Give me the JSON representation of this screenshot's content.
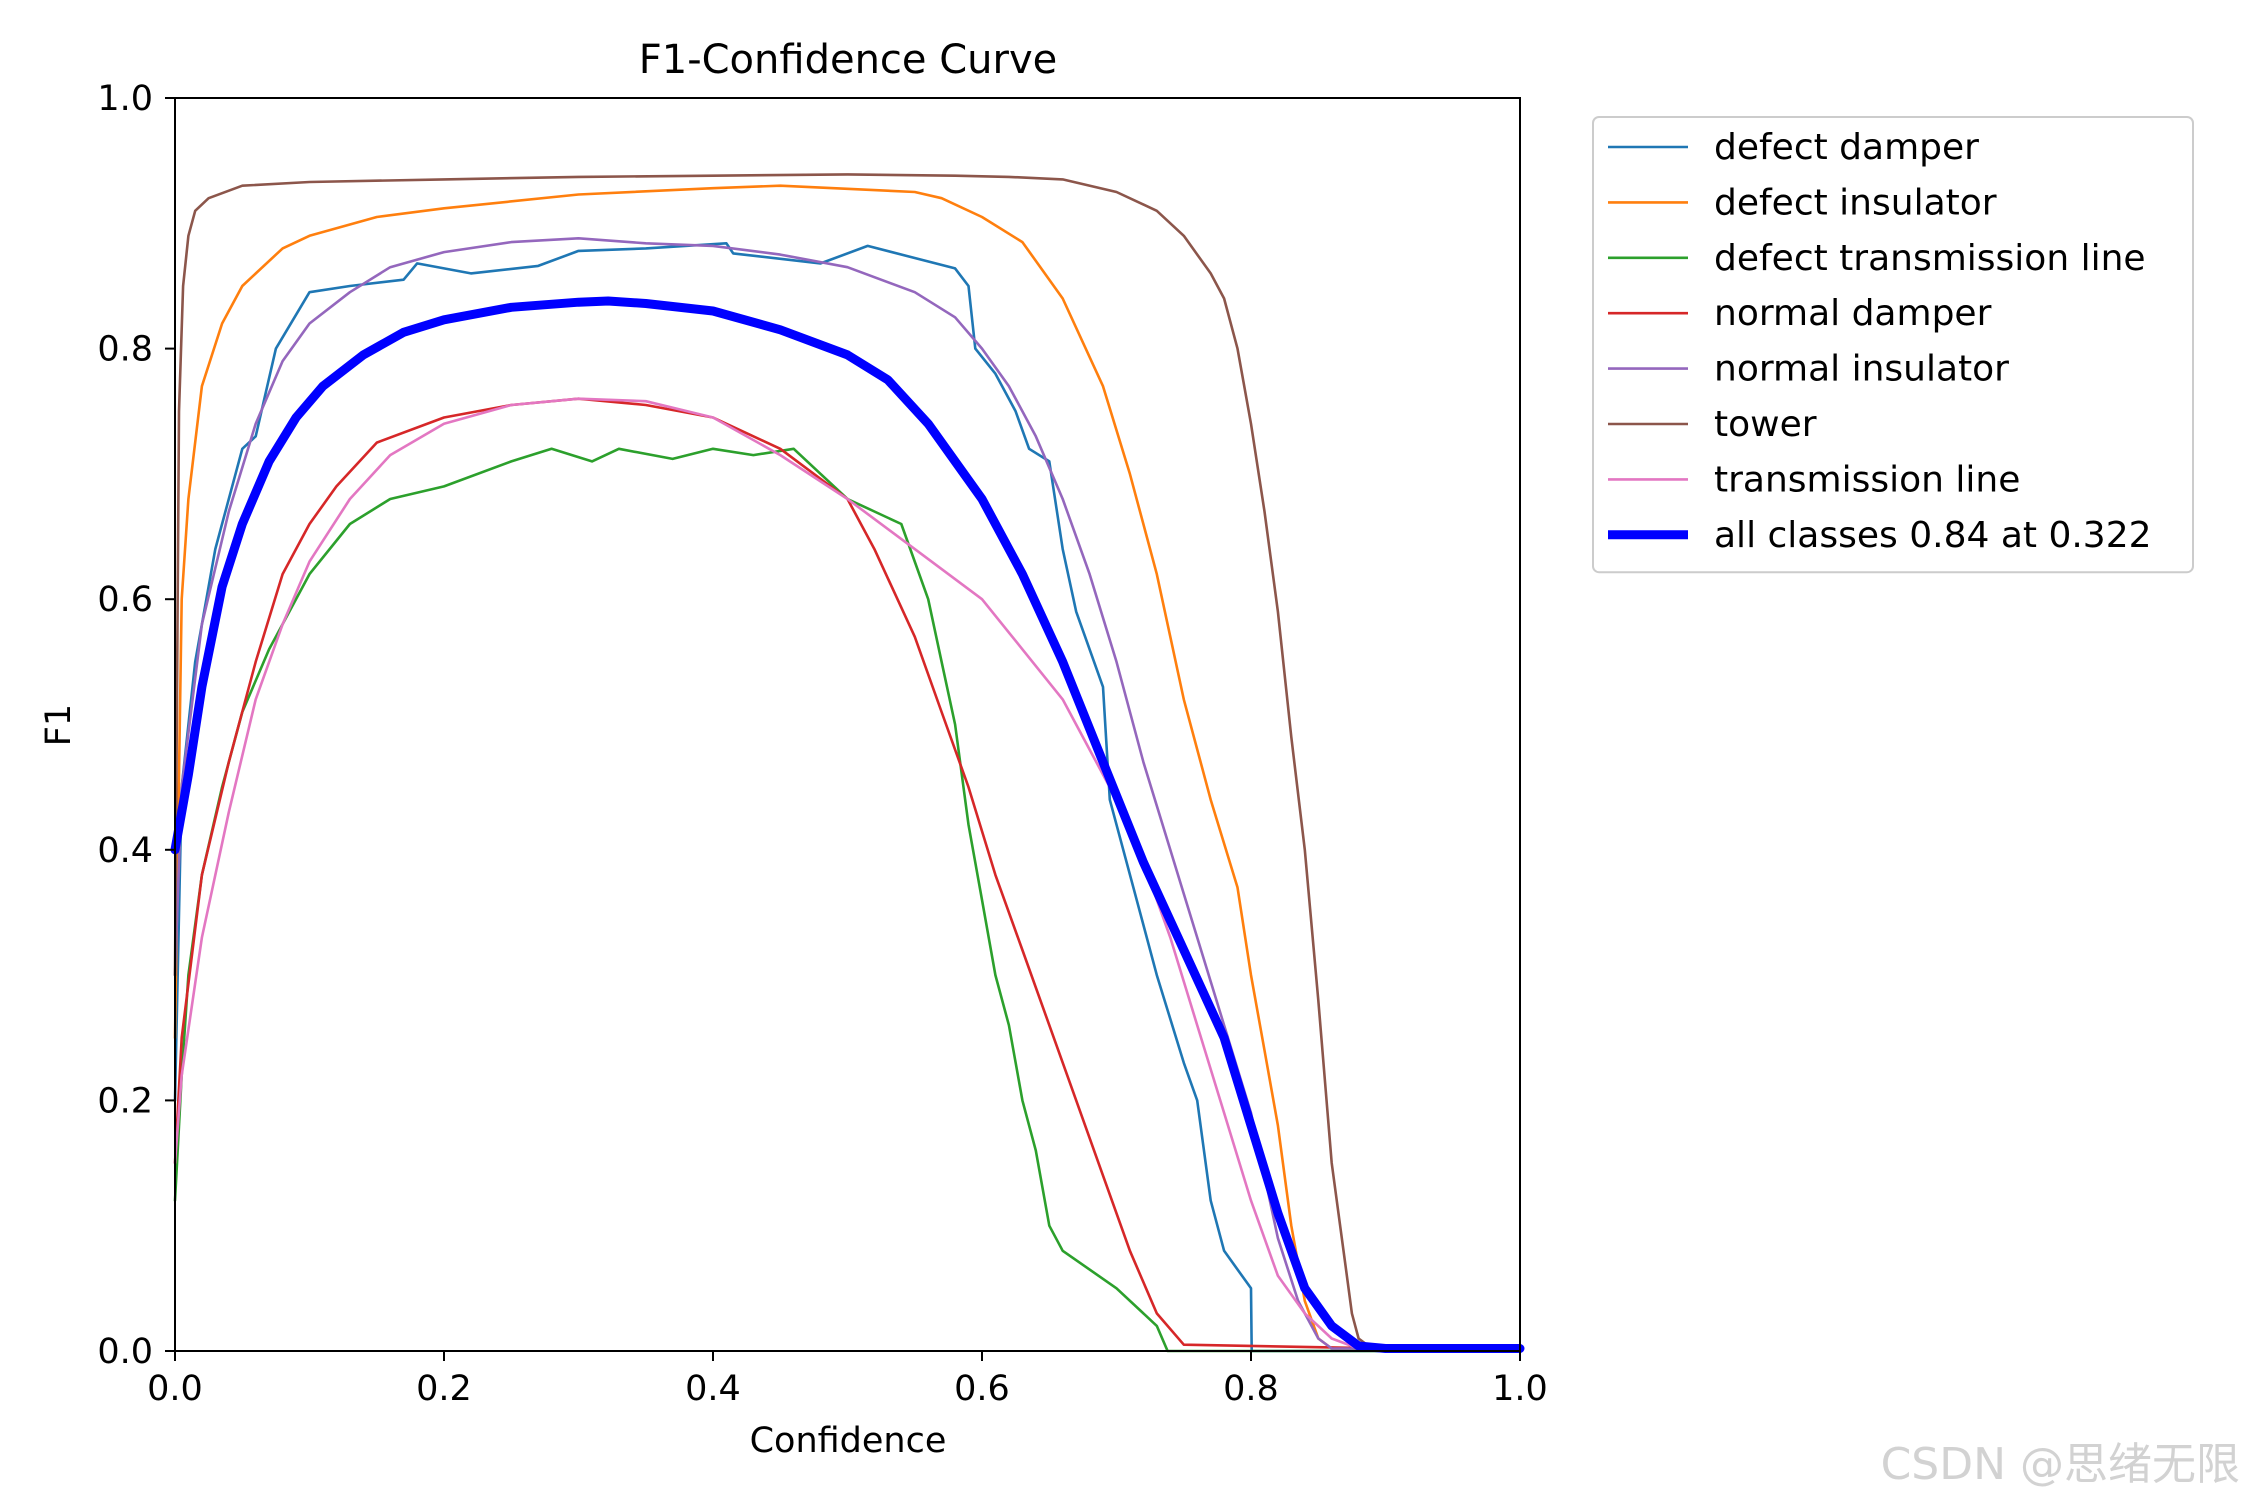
{
  "chart_data": {
    "type": "line",
    "title": "F1-Confidence Curve",
    "xlabel": "Confidence",
    "ylabel": "F1",
    "xlim": [
      0,
      1
    ],
    "ylim": [
      0,
      1
    ],
    "xticks": [
      "0.0",
      "0.2",
      "0.4",
      "0.6",
      "0.8",
      "1.0"
    ],
    "yticks": [
      "0.0",
      "0.2",
      "0.4",
      "0.6",
      "0.8",
      "1.0"
    ],
    "grid": false,
    "legend_position": "outside-top-right",
    "series": [
      {
        "name": "defect damper",
        "color": "#1f77b4",
        "points": [
          [
            0,
            0.2
          ],
          [
            0.005,
            0.45
          ],
          [
            0.015,
            0.55
          ],
          [
            0.03,
            0.64
          ],
          [
            0.05,
            0.72
          ],
          [
            0.06,
            0.73
          ],
          [
            0.075,
            0.8
          ],
          [
            0.1,
            0.845
          ],
          [
            0.13,
            0.85
          ],
          [
            0.17,
            0.855
          ],
          [
            0.18,
            0.868
          ],
          [
            0.22,
            0.86
          ],
          [
            0.27,
            0.866
          ],
          [
            0.3,
            0.878
          ],
          [
            0.35,
            0.88
          ],
          [
            0.41,
            0.884
          ],
          [
            0.415,
            0.876
          ],
          [
            0.48,
            0.868
          ],
          [
            0.515,
            0.882
          ],
          [
            0.58,
            0.864
          ],
          [
            0.59,
            0.85
          ],
          [
            0.595,
            0.8
          ],
          [
            0.61,
            0.78
          ],
          [
            0.625,
            0.75
          ],
          [
            0.635,
            0.72
          ],
          [
            0.65,
            0.71
          ],
          [
            0.66,
            0.64
          ],
          [
            0.67,
            0.59
          ],
          [
            0.69,
            0.53
          ],
          [
            0.695,
            0.44
          ],
          [
            0.715,
            0.36
          ],
          [
            0.73,
            0.3
          ],
          [
            0.75,
            0.23
          ],
          [
            0.76,
            0.2
          ],
          [
            0.77,
            0.12
          ],
          [
            0.78,
            0.08
          ],
          [
            0.8,
            0.05
          ],
          [
            0.8005,
            0.0
          ],
          [
            1.0,
            0.0
          ]
        ]
      },
      {
        "name": "defect insulator",
        "color": "#ff7f0e",
        "points": [
          [
            0,
            0.25
          ],
          [
            0.005,
            0.6
          ],
          [
            0.01,
            0.68
          ],
          [
            0.02,
            0.77
          ],
          [
            0.035,
            0.82
          ],
          [
            0.05,
            0.85
          ],
          [
            0.08,
            0.88
          ],
          [
            0.1,
            0.89
          ],
          [
            0.15,
            0.905
          ],
          [
            0.2,
            0.912
          ],
          [
            0.3,
            0.923
          ],
          [
            0.4,
            0.928
          ],
          [
            0.45,
            0.93
          ],
          [
            0.55,
            0.925
          ],
          [
            0.57,
            0.92
          ],
          [
            0.6,
            0.905
          ],
          [
            0.63,
            0.885
          ],
          [
            0.66,
            0.84
          ],
          [
            0.69,
            0.77
          ],
          [
            0.71,
            0.7
          ],
          [
            0.73,
            0.62
          ],
          [
            0.75,
            0.52
          ],
          [
            0.77,
            0.44
          ],
          [
            0.79,
            0.37
          ],
          [
            0.8,
            0.3
          ],
          [
            0.81,
            0.24
          ],
          [
            0.82,
            0.18
          ],
          [
            0.83,
            0.1
          ],
          [
            0.84,
            0.04
          ],
          [
            0.85,
            0.01
          ],
          [
            0.86,
            0.002
          ],
          [
            1.0,
            0.002
          ]
        ]
      },
      {
        "name": "defect transmission line",
        "color": "#2ca02c",
        "points": [
          [
            0,
            0.12
          ],
          [
            0.005,
            0.22
          ],
          [
            0.01,
            0.3
          ],
          [
            0.02,
            0.38
          ],
          [
            0.035,
            0.45
          ],
          [
            0.05,
            0.51
          ],
          [
            0.07,
            0.56
          ],
          [
            0.1,
            0.62
          ],
          [
            0.13,
            0.66
          ],
          [
            0.16,
            0.68
          ],
          [
            0.2,
            0.69
          ],
          [
            0.25,
            0.71
          ],
          [
            0.28,
            0.72
          ],
          [
            0.31,
            0.71
          ],
          [
            0.33,
            0.72
          ],
          [
            0.37,
            0.712
          ],
          [
            0.4,
            0.72
          ],
          [
            0.43,
            0.715
          ],
          [
            0.46,
            0.72
          ],
          [
            0.48,
            0.7
          ],
          [
            0.5,
            0.68
          ],
          [
            0.52,
            0.67
          ],
          [
            0.54,
            0.66
          ],
          [
            0.56,
            0.6
          ],
          [
            0.57,
            0.55
          ],
          [
            0.58,
            0.5
          ],
          [
            0.59,
            0.42
          ],
          [
            0.6,
            0.36
          ],
          [
            0.61,
            0.3
          ],
          [
            0.62,
            0.26
          ],
          [
            0.63,
            0.2
          ],
          [
            0.64,
            0.16
          ],
          [
            0.65,
            0.1
          ],
          [
            0.66,
            0.08
          ],
          [
            0.7,
            0.05
          ],
          [
            0.73,
            0.02
          ],
          [
            0.738,
            0.0
          ],
          [
            1.0,
            0.0
          ]
        ]
      },
      {
        "name": "normal damper",
        "color": "#d62728",
        "points": [
          [
            0,
            0.15
          ],
          [
            0.005,
            0.25
          ],
          [
            0.02,
            0.38
          ],
          [
            0.04,
            0.47
          ],
          [
            0.06,
            0.55
          ],
          [
            0.08,
            0.62
          ],
          [
            0.1,
            0.66
          ],
          [
            0.12,
            0.69
          ],
          [
            0.15,
            0.725
          ],
          [
            0.2,
            0.745
          ],
          [
            0.25,
            0.755
          ],
          [
            0.3,
            0.76
          ],
          [
            0.35,
            0.755
          ],
          [
            0.4,
            0.745
          ],
          [
            0.45,
            0.72
          ],
          [
            0.5,
            0.68
          ],
          [
            0.52,
            0.64
          ],
          [
            0.55,
            0.57
          ],
          [
            0.57,
            0.51
          ],
          [
            0.59,
            0.45
          ],
          [
            0.61,
            0.38
          ],
          [
            0.63,
            0.32
          ],
          [
            0.65,
            0.26
          ],
          [
            0.67,
            0.2
          ],
          [
            0.69,
            0.14
          ],
          [
            0.71,
            0.08
          ],
          [
            0.73,
            0.03
          ],
          [
            0.75,
            0.005
          ],
          [
            1.0,
            0.0
          ]
        ]
      },
      {
        "name": "normal insulator",
        "color": "#9467bd",
        "points": [
          [
            0,
            0.3
          ],
          [
            0.005,
            0.45
          ],
          [
            0.02,
            0.58
          ],
          [
            0.04,
            0.67
          ],
          [
            0.06,
            0.74
          ],
          [
            0.08,
            0.79
          ],
          [
            0.1,
            0.82
          ],
          [
            0.13,
            0.845
          ],
          [
            0.16,
            0.865
          ],
          [
            0.2,
            0.877
          ],
          [
            0.25,
            0.885
          ],
          [
            0.3,
            0.888
          ],
          [
            0.35,
            0.884
          ],
          [
            0.4,
            0.882
          ],
          [
            0.45,
            0.875
          ],
          [
            0.5,
            0.865
          ],
          [
            0.55,
            0.845
          ],
          [
            0.58,
            0.825
          ],
          [
            0.6,
            0.8
          ],
          [
            0.62,
            0.77
          ],
          [
            0.64,
            0.73
          ],
          [
            0.66,
            0.68
          ],
          [
            0.68,
            0.62
          ],
          [
            0.7,
            0.55
          ],
          [
            0.72,
            0.47
          ],
          [
            0.74,
            0.4
          ],
          [
            0.76,
            0.33
          ],
          [
            0.78,
            0.26
          ],
          [
            0.8,
            0.19
          ],
          [
            0.81,
            0.14
          ],
          [
            0.82,
            0.09
          ],
          [
            0.835,
            0.04
          ],
          [
            0.85,
            0.01
          ],
          [
            0.86,
            0.002
          ],
          [
            1.0,
            0.002
          ]
        ]
      },
      {
        "name": "tower",
        "color": "#8c564b",
        "points": [
          [
            0,
            0.3
          ],
          [
            0.003,
            0.75
          ],
          [
            0.006,
            0.85
          ],
          [
            0.01,
            0.89
          ],
          [
            0.015,
            0.91
          ],
          [
            0.025,
            0.92
          ],
          [
            0.05,
            0.93
          ],
          [
            0.1,
            0.933
          ],
          [
            0.2,
            0.935
          ],
          [
            0.3,
            0.937
          ],
          [
            0.4,
            0.938
          ],
          [
            0.5,
            0.939
          ],
          [
            0.58,
            0.938
          ],
          [
            0.62,
            0.937
          ],
          [
            0.66,
            0.935
          ],
          [
            0.7,
            0.925
          ],
          [
            0.73,
            0.91
          ],
          [
            0.75,
            0.89
          ],
          [
            0.77,
            0.86
          ],
          [
            0.78,
            0.84
          ],
          [
            0.79,
            0.8
          ],
          [
            0.8,
            0.74
          ],
          [
            0.81,
            0.67
          ],
          [
            0.82,
            0.59
          ],
          [
            0.83,
            0.49
          ],
          [
            0.84,
            0.4
          ],
          [
            0.85,
            0.28
          ],
          [
            0.86,
            0.15
          ],
          [
            0.87,
            0.07
          ],
          [
            0.875,
            0.03
          ],
          [
            0.88,
            0.01
          ],
          [
            0.89,
            0.002
          ],
          [
            1.0,
            0.002
          ]
        ]
      },
      {
        "name": "transmission line",
        "color": "#e377c2",
        "points": [
          [
            0,
            0.15
          ],
          [
            0.005,
            0.22
          ],
          [
            0.02,
            0.33
          ],
          [
            0.04,
            0.43
          ],
          [
            0.06,
            0.52
          ],
          [
            0.08,
            0.58
          ],
          [
            0.1,
            0.63
          ],
          [
            0.13,
            0.68
          ],
          [
            0.16,
            0.715
          ],
          [
            0.2,
            0.74
          ],
          [
            0.25,
            0.755
          ],
          [
            0.3,
            0.76
          ],
          [
            0.35,
            0.758
          ],
          [
            0.4,
            0.745
          ],
          [
            0.45,
            0.715
          ],
          [
            0.5,
            0.68
          ],
          [
            0.55,
            0.64
          ],
          [
            0.6,
            0.6
          ],
          [
            0.63,
            0.56
          ],
          [
            0.66,
            0.52
          ],
          [
            0.68,
            0.48
          ],
          [
            0.7,
            0.44
          ],
          [
            0.72,
            0.39
          ],
          [
            0.74,
            0.33
          ],
          [
            0.76,
            0.26
          ],
          [
            0.78,
            0.19
          ],
          [
            0.8,
            0.12
          ],
          [
            0.82,
            0.06
          ],
          [
            0.84,
            0.03
          ],
          [
            0.86,
            0.01
          ],
          [
            0.88,
            0.002
          ],
          [
            1.0,
            0.002
          ]
        ]
      },
      {
        "name": "all classes 0.84 at 0.322",
        "color": "#0000ff",
        "bold": true,
        "points": [
          [
            0,
            0.4
          ],
          [
            0.01,
            0.46
          ],
          [
            0.02,
            0.53
          ],
          [
            0.035,
            0.61
          ],
          [
            0.05,
            0.66
          ],
          [
            0.07,
            0.71
          ],
          [
            0.09,
            0.745
          ],
          [
            0.11,
            0.77
          ],
          [
            0.14,
            0.795
          ],
          [
            0.17,
            0.813
          ],
          [
            0.2,
            0.823
          ],
          [
            0.25,
            0.833
          ],
          [
            0.3,
            0.837
          ],
          [
            0.322,
            0.838
          ],
          [
            0.35,
            0.836
          ],
          [
            0.4,
            0.83
          ],
          [
            0.45,
            0.815
          ],
          [
            0.5,
            0.795
          ],
          [
            0.53,
            0.775
          ],
          [
            0.56,
            0.74
          ],
          [
            0.6,
            0.68
          ],
          [
            0.63,
            0.62
          ],
          [
            0.66,
            0.55
          ],
          [
            0.69,
            0.47
          ],
          [
            0.72,
            0.39
          ],
          [
            0.75,
            0.32
          ],
          [
            0.78,
            0.25
          ],
          [
            0.8,
            0.18
          ],
          [
            0.82,
            0.11
          ],
          [
            0.84,
            0.05
          ],
          [
            0.86,
            0.02
          ],
          [
            0.88,
            0.004
          ],
          [
            0.9,
            0.002
          ],
          [
            1.0,
            0.002
          ]
        ]
      }
    ]
  },
  "watermark": "CSDN @思绪无限"
}
